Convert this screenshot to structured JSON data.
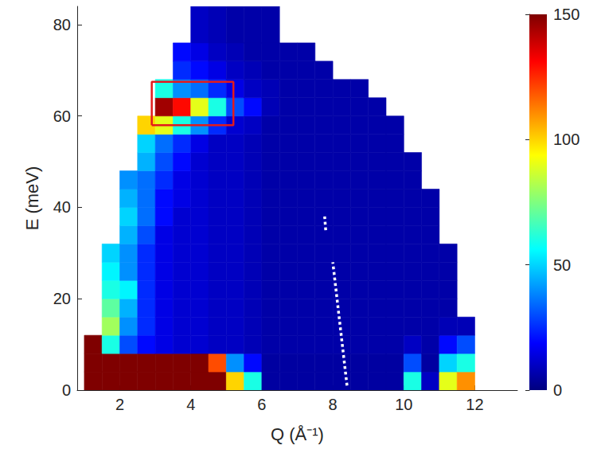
{
  "chart_data": {
    "type": "heatmap",
    "x_label": "Q (Å⁻¹)",
    "y_label": "E (meV)",
    "xlim": [
      0.8,
      13.2
    ],
    "ylim": [
      0,
      84
    ],
    "xticks": [
      2,
      4,
      6,
      8,
      10,
      12
    ],
    "yticks": [
      0,
      20,
      40,
      60,
      80
    ],
    "grid": false,
    "x_bins": [
      1.0,
      1.5,
      2.0,
      2.5,
      3.0,
      3.5,
      4.0,
      4.5,
      5.0,
      5.5,
      6.0,
      6.5,
      7.0,
      7.5,
      8.0,
      8.5,
      9.0,
      9.5,
      10.0,
      10.5,
      11.0,
      11.5,
      12.0,
      12.5
    ],
    "y_bins": [
      0,
      4,
      8,
      12,
      16,
      20,
      24,
      28,
      32,
      36,
      40,
      44,
      48,
      52,
      56,
      60,
      64,
      68,
      72,
      76,
      84
    ],
    "cells": [
      [
        150,
        150,
        150,
        150,
        150,
        150,
        150,
        150,
        100,
        60,
        5,
        5,
        5,
        5,
        5,
        5,
        5,
        5,
        60,
        10,
        90,
        110,
        null
      ],
      [
        150,
        150,
        150,
        150,
        150,
        150,
        150,
        120,
        40,
        20,
        5,
        5,
        5,
        5,
        5,
        5,
        5,
        5,
        30,
        5,
        50,
        60,
        null
      ],
      [
        150,
        60,
        30,
        20,
        15,
        12,
        12,
        10,
        10,
        8,
        6,
        6,
        6,
        6,
        6,
        6,
        6,
        6,
        10,
        6,
        20,
        30,
        null
      ],
      [
        null,
        80,
        40,
        25,
        15,
        12,
        12,
        10,
        10,
        8,
        6,
        6,
        6,
        6,
        6,
        6,
        6,
        6,
        6,
        6,
        8,
        8,
        null
      ],
      [
        null,
        70,
        45,
        25,
        15,
        12,
        12,
        10,
        10,
        8,
        6,
        6,
        6,
        6,
        6,
        6,
        6,
        6,
        6,
        6,
        6,
        null,
        null
      ],
      [
        null,
        60,
        55,
        25,
        15,
        12,
        12,
        10,
        10,
        8,
        6,
        6,
        6,
        6,
        6,
        6,
        6,
        6,
        6,
        6,
        6,
        null,
        null
      ],
      [
        null,
        55,
        40,
        25,
        15,
        12,
        12,
        10,
        10,
        8,
        6,
        6,
        6,
        6,
        6,
        6,
        6,
        6,
        6,
        6,
        6,
        null,
        null
      ],
      [
        null,
        50,
        40,
        25,
        15,
        12,
        12,
        10,
        10,
        8,
        6,
        6,
        6,
        6,
        6,
        6,
        6,
        6,
        6,
        6,
        6,
        null,
        null
      ],
      [
        null,
        null,
        45,
        30,
        15,
        12,
        12,
        10,
        10,
        8,
        6,
        6,
        6,
        6,
        6,
        6,
        6,
        6,
        6,
        6,
        null,
        null,
        null
      ],
      [
        null,
        null,
        50,
        35,
        20,
        12,
        12,
        10,
        10,
        8,
        6,
        6,
        6,
        6,
        6,
        6,
        6,
        6,
        6,
        6,
        null,
        null,
        null
      ],
      [
        null,
        null,
        45,
        35,
        20,
        15,
        12,
        10,
        10,
        8,
        6,
        6,
        6,
        6,
        6,
        6,
        6,
        6,
        6,
        6,
        null,
        null,
        null
      ],
      [
        null,
        null,
        40,
        35,
        25,
        15,
        12,
        10,
        10,
        8,
        6,
        6,
        6,
        6,
        6,
        6,
        6,
        6,
        6,
        null,
        null,
        null,
        null
      ],
      [
        null,
        null,
        null,
        45,
        30,
        20,
        12,
        10,
        10,
        8,
        6,
        6,
        6,
        6,
        6,
        6,
        6,
        6,
        6,
        null,
        null,
        null,
        null
      ],
      [
        null,
        null,
        null,
        50,
        35,
        25,
        15,
        10,
        10,
        8,
        6,
        6,
        6,
        6,
        6,
        6,
        6,
        6,
        null,
        null,
        null,
        null,
        null
      ],
      [
        null,
        null,
        null,
        100,
        90,
        60,
        40,
        25,
        12,
        10,
        6,
        6,
        6,
        6,
        6,
        6,
        6,
        6,
        null,
        null,
        null,
        null,
        null
      ],
      [
        null,
        null,
        null,
        null,
        145,
        130,
        90,
        60,
        30,
        20,
        8,
        6,
        6,
        6,
        6,
        6,
        6,
        null,
        null,
        null,
        null,
        null,
        null
      ],
      [
        null,
        null,
        null,
        null,
        60,
        40,
        35,
        25,
        15,
        10,
        8,
        6,
        6,
        6,
        6,
        6,
        null,
        null,
        null,
        null,
        null,
        null,
        null
      ],
      [
        null,
        null,
        null,
        null,
        null,
        25,
        20,
        15,
        10,
        8,
        6,
        6,
        6,
        6,
        null,
        null,
        null,
        null,
        null,
        null,
        null,
        null,
        null
      ],
      [
        null,
        null,
        null,
        null,
        null,
        20,
        15,
        10,
        8,
        6,
        6,
        6,
        6,
        null,
        null,
        null,
        null,
        null,
        null,
        null,
        null,
        null,
        null
      ],
      [
        null,
        null,
        null,
        null,
        null,
        null,
        10,
        8,
        6,
        6,
        6,
        null,
        null,
        null,
        null,
        null,
        null,
        null,
        null,
        null,
        null,
        null,
        null
      ]
    ],
    "colorbar_range": [
      0,
      150
    ],
    "colorbar_ticks": [
      0,
      50,
      100,
      150
    ],
    "overlays": [
      {
        "type": "rectangle",
        "x": [
          2.9,
          5.2
        ],
        "y": [
          58,
          67.5
        ],
        "color": "#e31a1c",
        "line_style": "solid"
      },
      {
        "type": "line",
        "x": [
          8.4,
          8.0,
          null,
          7.8,
          7.77
        ],
        "y": [
          1,
          28,
          null,
          35,
          38
        ],
        "color": "#ffffff",
        "line_style": "dotted"
      }
    ]
  }
}
